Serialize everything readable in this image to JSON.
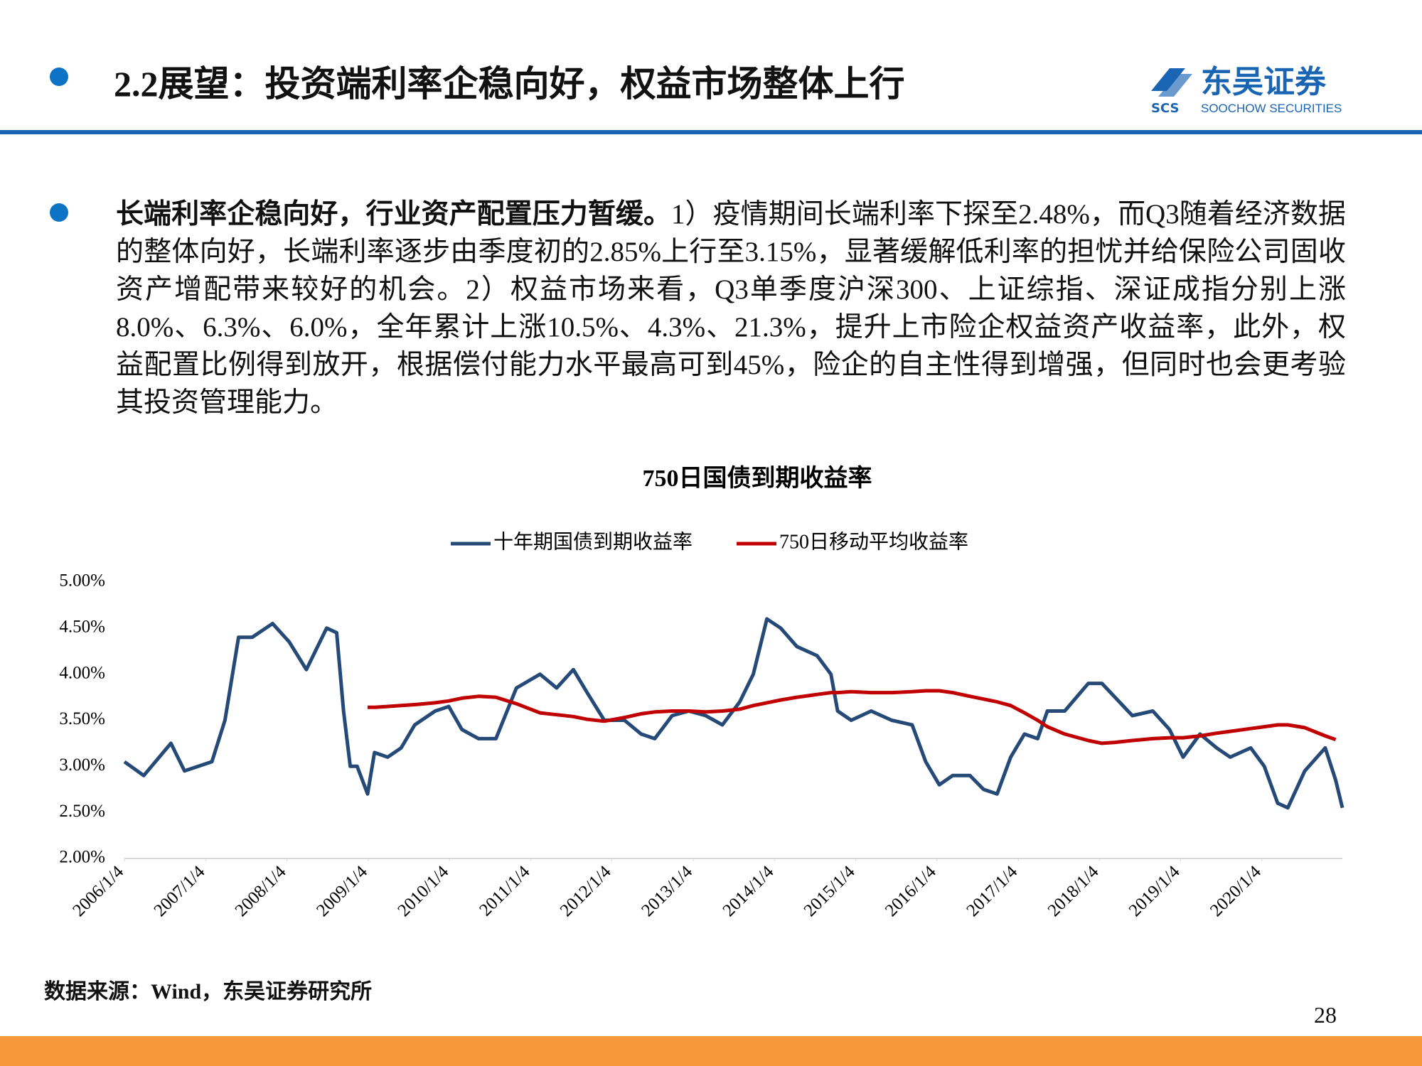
{
  "header": {
    "title": "2.2展望：投资端利率企稳向好，权益市场整体上行",
    "logo_cn": "东吴证券",
    "logo_abbr": "SCS",
    "logo_en": "SOOCHOW SECURITIES"
  },
  "body": {
    "bold": "长端利率企稳向好，行业资产配置压力暂缓。",
    "text": "1）疫情期间长端利率下探至2.48%，而Q3随着经济数据的整体向好，长端利率逐步由季度初的2.85%上行至3.15%，显著缓解低利率的担忧并给保险公司固收资产增配带来较好的机会。2）权益市场来看，Q3单季度沪深300、上证综指、深证成指分别上涨8.0%、6.3%、6.0%，全年累计上涨10.5%、4.3%、21.3%，提升上市险企权益资产收益率，此外，权益配置比例得到放开，根据偿付能力水平最高可到45%，险企的自主性得到增强，但同时也会更考验其投资管理能力。"
  },
  "chart_data": {
    "type": "line",
    "title": "750日国债到期收益率",
    "x": [
      "2006/1/4",
      "2006/4/1",
      "2006/8/1",
      "2006/10/1",
      "2007/2/1",
      "2007/4/1",
      "2007/6/1",
      "2007/8/1",
      "2007/11/1",
      "2008/1/15",
      "2008/4/1",
      "2008/7/1",
      "2008/8/15",
      "2008/9/15",
      "2008/10/15",
      "2008/11/15",
      "2009/1/1",
      "2009/2/1",
      "2009/4/1",
      "2009/6/1",
      "2009/8/1",
      "2009/11/1",
      "2010/1/1",
      "2010/3/1",
      "2010/5/15",
      "2010/8/1",
      "2010/11/1",
      "2011/2/15",
      "2011/5/1",
      "2011/7/15",
      "2011/9/15",
      "2011/12/1",
      "2012/3/1",
      "2012/5/15",
      "2012/7/15",
      "2012/10/1",
      "2012/12/15",
      "2013/3/1",
      "2013/5/15",
      "2013/8/1",
      "2013/10/1",
      "2013/12/1",
      "2014/2/1",
      "2014/4/15",
      "2014/7/15",
      "2014/9/15",
      "2014/10/15",
      "2014/12/15",
      "2015/3/15",
      "2015/6/15",
      "2015/9/15",
      "2015/11/15",
      "2016/1/15",
      "2016/3/15",
      "2016/6/1",
      "2016/8/1",
      "2016/10/1",
      "2016/12/1",
      "2017/2/1",
      "2017/4/1",
      "2017/5/15",
      "2017/8/1",
      "2017/11/15",
      "2018/1/15",
      "2018/3/15",
      "2018/6/1",
      "2018/9/1",
      "2018/11/15",
      "2019/1/15",
      "2019/4/1",
      "2019/6/15",
      "2019/8/15",
      "2019/11/15",
      "2020/1/15",
      "2020/3/15",
      "2020/4/30",
      "2020/7/15",
      "2020/10/15",
      "2020/12/1",
      "2020/12/31"
    ],
    "series": [
      {
        "name": "十年期国债到期收益率",
        "color": "#254a78",
        "values": [
          3.05,
          2.9,
          3.25,
          2.95,
          3.05,
          3.5,
          4.4,
          4.4,
          4.55,
          4.35,
          4.05,
          4.5,
          4.45,
          3.6,
          3.0,
          3.0,
          2.7,
          3.15,
          3.1,
          3.2,
          3.45,
          3.6,
          3.65,
          3.4,
          3.3,
          3.3,
          3.85,
          4.0,
          3.85,
          4.05,
          3.8,
          3.5,
          3.5,
          3.35,
          3.3,
          3.55,
          3.6,
          3.55,
          3.45,
          3.7,
          4.0,
          4.6,
          4.5,
          4.3,
          4.2,
          4.0,
          3.6,
          3.5,
          3.6,
          3.5,
          3.45,
          3.05,
          2.8,
          2.9,
          2.9,
          2.75,
          2.7,
          3.1,
          3.35,
          3.3,
          3.6,
          3.6,
          3.9,
          3.9,
          3.75,
          3.55,
          3.6,
          3.4,
          3.1,
          3.35,
          3.2,
          3.1,
          3.2,
          3.0,
          2.6,
          2.55,
          2.95,
          3.2,
          2.85,
          2.55
        ]
      },
      {
        "name": "750日移动平均收益率",
        "color": "#c00000",
        "values": [
          null,
          null,
          null,
          null,
          null,
          null,
          null,
          null,
          null,
          null,
          null,
          null,
          null,
          null,
          null,
          null,
          3.64,
          3.64,
          3.65,
          3.66,
          3.67,
          3.69,
          3.71,
          3.74,
          3.76,
          3.75,
          3.68,
          3.58,
          3.56,
          3.54,
          3.51,
          3.49,
          3.53,
          3.57,
          3.59,
          3.6,
          3.6,
          3.59,
          3.6,
          3.62,
          3.66,
          3.69,
          3.72,
          3.75,
          3.78,
          3.8,
          3.8,
          3.81,
          3.8,
          3.8,
          3.81,
          3.82,
          3.82,
          3.8,
          3.76,
          3.73,
          3.7,
          3.66,
          3.58,
          3.5,
          3.43,
          3.35,
          3.28,
          3.25,
          3.26,
          3.28,
          3.3,
          3.31,
          3.31,
          3.33,
          3.36,
          3.38,
          3.41,
          3.43,
          3.45,
          3.45,
          3.42,
          3.33,
          3.29,
          null
        ]
      }
    ],
    "xlim": [
      "2006/1/4",
      "2020/12/31"
    ],
    "xticks": [
      "2006/1/4",
      "2007/1/4",
      "2008/1/4",
      "2009/1/4",
      "2010/1/4",
      "2011/1/4",
      "2012/1/4",
      "2013/1/4",
      "2014/1/4",
      "2015/1/4",
      "2016/1/4",
      "2017/1/4",
      "2018/1/4",
      "2019/1/4",
      "2020/1/4"
    ],
    "ylim": [
      2,
      5
    ],
    "yticks": [
      {
        "value": 2,
        "label": "2.00%"
      },
      {
        "value": 2.5,
        "label": "2.50%"
      },
      {
        "value": 3,
        "label": "3.00%"
      },
      {
        "value": 3.5,
        "label": "3.50%"
      },
      {
        "value": 4,
        "label": "4.00%"
      },
      {
        "value": 4.5,
        "label": "4.50%"
      },
      {
        "value": 5,
        "label": "5.00%"
      }
    ],
    "legend": "top"
  },
  "footer": {
    "source": "数据来源：Wind，东吴证券研究所",
    "page": "28"
  }
}
